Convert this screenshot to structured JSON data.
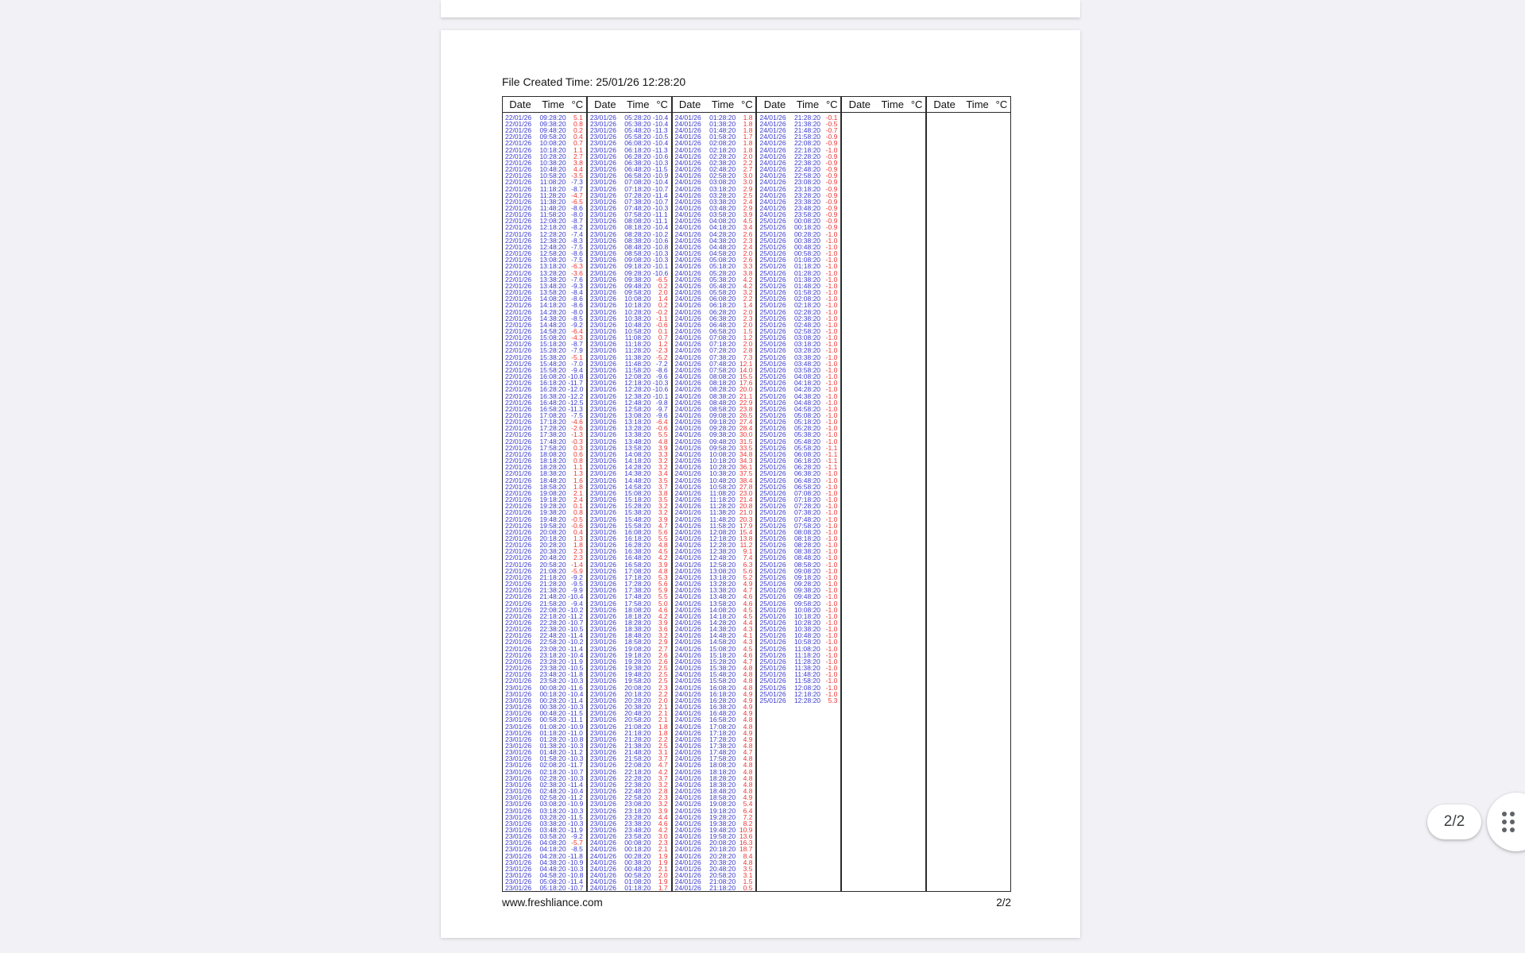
{
  "viewer": {
    "floating_page_indicator": "2/2",
    "colors": {
      "background": "#f1f1f6",
      "page": "#ffffff",
      "dot_icon": "#5f6368"
    }
  },
  "document": {
    "file_created_line": "File Created Time: 25/01/26 12:28:20",
    "footer": {
      "left": "www.freshliance.com",
      "right": "2/2"
    },
    "table": {
      "column_headers": [
        "Date",
        "Time",
        "°C"
      ],
      "group_count": 6,
      "alarm_threshold_c": -7.0,
      "colors": {
        "normal": "#3a3ace",
        "alarm": "#ee3433"
      },
      "groups": [
        [
          "22/01/26 09:28:20 5.1",
          "22/01/26 09:38:20 0.8",
          "22/01/26 09:48:20 0.2",
          "22/01/26 09:58:20 0.4",
          "22/01/26 10:08:20 0.7",
          "22/01/26 10:18:20 1.1",
          "22/01/26 10:28:20 2.7",
          "22/01/26 10:38:20 3.8",
          "22/01/26 10:48:20 4.4",
          "22/01/26 10:58:20 -3.5",
          "22/01/26 11:08:20 -7.3",
          "22/01/26 11:18:20 -8.7",
          "22/01/26 11:28:20 -4.7",
          "22/01/26 11:38:20 -6.5",
          "22/01/26 11:48:20 -8.6",
          "22/01/26 11:58:20 -8.0",
          "22/01/26 12:08:20 -8.7",
          "22/01/26 12:18:20 -8.2",
          "22/01/26 12:28:20 -7.4",
          "22/01/26 12:38:20 -8.3",
          "22/01/26 12:48:20 -7.5",
          "22/01/26 12:58:20 -8.6",
          "22/01/26 13:08:20 -7.5",
          "22/01/26 13:18:20 -6.3",
          "22/01/26 13:28:20 -3.6",
          "22/01/26 13:38:20 -7.6",
          "22/01/26 13:48:20 -9.3",
          "22/01/26 13:58:20 -8.4",
          "22/01/26 14:08:20 -8.6",
          "22/01/26 14:18:20 -8.6",
          "22/01/26 14:28:20 -8.0",
          "22/01/26 14:38:20 -8.5",
          "22/01/26 14:48:20 -9.2",
          "22/01/26 14:58:20 -6.4",
          "22/01/26 15:08:20 -4.3",
          "22/01/26 15:18:20 -8.7",
          "22/01/26 15:28:20 -7.9",
          "22/01/26 15:38:20 -5.1",
          "22/01/26 15:48:20 -7.0",
          "22/01/26 15:58:20 -9.4",
          "22/01/26 16:08:20 -10.8",
          "22/01/26 16:18:20 -11.7",
          "22/01/26 16:28:20 -12.0",
          "22/01/26 16:38:20 -12.2",
          "22/01/26 16:48:20 -12.5",
          "22/01/26 16:58:20 -11.3",
          "22/01/26 17:08:20 -7.5",
          "22/01/26 17:18:20 -4.6",
          "22/01/26 17:28:20 -2.6",
          "22/01/26 17:38:20 -1.3",
          "22/01/26 17:48:20 -0.3",
          "22/01/26 17:58:20 0.3",
          "22/01/26 18:08:20 0.6",
          "22/01/26 18:18:20 0.8",
          "22/01/26 18:28:20 1.1",
          "22/01/26 18:38:20 1.3",
          "22/01/26 18:48:20 1.6",
          "22/01/26 18:58:20 1.8",
          "22/01/26 19:08:20 2.1",
          "22/01/26 19:18:20 2.4",
          "22/01/26 19:28:20 0.1",
          "22/01/26 19:38:20 0.8",
          "22/01/26 19:48:20 -0.5",
          "22/01/26 19:58:20 -0.6",
          "22/01/26 20:08:20 0.4",
          "22/01/26 20:18:20 1.3",
          "22/01/26 20:28:20 1.8",
          "22/01/26 20:38:20 2.3",
          "22/01/26 20:48:20 2.3",
          "22/01/26 20:58:20 -1.4",
          "22/01/26 21:08:20 -5.9",
          "22/01/26 21:18:20 -9.2",
          "22/01/26 21:28:20 -9.5",
          "22/01/26 21:38:20 -9.9",
          "22/01/26 21:48:20 -10.4",
          "22/01/26 21:58:20 -9.4",
          "22/01/26 22:08:20 -10.2",
          "22/01/26 22:18:20 -11.2",
          "22/01/26 22:28:20 -10.7",
          "22/01/26 22:38:20 -10.5",
          "22/01/26 22:48:20 -11.4",
          "22/01/26 22:58:20 -10.2",
          "22/01/26 23:08:20 -11.4",
          "22/01/26 23:18:20 -10.4",
          "22/01/26 23:28:20 -11.9",
          "22/01/26 23:38:20 -10.5",
          "22/01/26 23:48:20 -11.8",
          "22/01/26 23:58:20 -10.3",
          "23/01/26 00:08:20 -11.6",
          "23/01/26 00:18:20 -10.4",
          "23/01/26 00:28:20 -11.4",
          "23/01/26 00:38:20 -10.3",
          "23/01/26 00:48:20 -11.5",
          "23/01/26 00:58:20 -11.1",
          "23/01/26 01:08:20 -10.9",
          "23/01/26 01:18:20 -11.0",
          "23/01/26 01:28:20 -10.8",
          "23/01/26 01:38:20 -10.3",
          "23/01/26 01:48:20 -11.2",
          "23/01/26 01:58:20 -10.3",
          "23/01/26 02:08:20 -11.7",
          "23/01/26 02:18:20 -10.7",
          "23/01/26 02:28:20 -10.3",
          "23/01/26 02:38:20 -11.4",
          "23/01/26 02:48:20 -10.4",
          "23/01/26 02:58:20 -11.2",
          "23/01/26 03:08:20 -10.9",
          "23/01/26 03:18:20 -10.3",
          "23/01/26 03:28:20 -11.5",
          "23/01/26 03:38:20 -10.3",
          "23/01/26 03:48:20 -11.9",
          "23/01/26 03:58:20 -9.2",
          "23/01/26 04:08:20 -5.7",
          "23/01/26 04:18:20 -8.5",
          "23/01/26 04:28:20 -11.8",
          "23/01/26 04:38:20 -10.9",
          "23/01/26 04:48:20 -10.3",
          "23/01/26 04:58:20 -10.8",
          "23/01/26 05:08:20 -11.4",
          "23/01/26 05:18:20 -10.7"
        ],
        [
          "23/01/26 05:28:20 -10.4",
          "23/01/26 05:38:20 -10.4",
          "23/01/26 05:48:20 -11.3",
          "23/01/26 05:58:20 -10.5",
          "23/01/26 06:08:20 -10.4",
          "23/01/26 06:18:20 -11.3",
          "23/01/26 06:28:20 -10.6",
          "23/01/26 06:38:20 -10.3",
          "23/01/26 06:48:20 -11.5",
          "23/01/26 06:58:20 -10.9",
          "23/01/26 07:08:20 -10.4",
          "23/01/26 07:18:20 -10.7",
          "23/01/26 07:28:20 -11.4",
          "23/01/26 07:38:20 -10.7",
          "23/01/26 07:48:20 -10.3",
          "23/01/26 07:58:20 -11.1",
          "23/01/26 08:08:20 -11.1",
          "23/01/26 08:18:20 -10.4",
          "23/01/26 08:28:20 -10.2",
          "23/01/26 08:38:20 -10.6",
          "23/01/26 08:48:20 -10.8",
          "23/01/26 08:58:20 -10.3",
          "23/01/26 09:08:20 -10.3",
          "23/01/26 09:18:20 -10.1",
          "23/01/26 09:28:20 -10.6",
          "23/01/26 09:38:20 -6.5",
          "23/01/26 09:48:20 0.2",
          "23/01/26 09:58:20 2.0",
          "23/01/26 10:08:20 1.4",
          "23/01/26 10:18:20 0.2",
          "23/01/26 10:28:20 -0.2",
          "23/01/26 10:38:20 -1.1",
          "23/01/26 10:48:20 -0.6",
          "23/01/26 10:58:20 0.1",
          "23/01/26 11:08:20 0.7",
          "23/01/26 11:18:20 1.2",
          "23/01/26 11:28:20 -2.3",
          "23/01/26 11:38:20 -5.2",
          "23/01/26 11:48:20 -7.2",
          "23/01/26 11:58:20 -8.6",
          "23/01/26 12:08:20 -9.6",
          "23/01/26 12:18:20 -10.3",
          "23/01/26 12:28:20 -10.6",
          "23/01/26 12:38:20 -10.1",
          "23/01/26 12:48:20 -9.8",
          "23/01/26 12:58:20 -9.7",
          "23/01/26 13:08:20 -9.6",
          "23/01/26 13:18:20 -6.4",
          "23/01/26 13:28:20 -0.6",
          "23/01/26 13:38:20 5.5",
          "23/01/26 13:48:20 4.8",
          "23/01/26 13:58:20 3.9",
          "23/01/26 14:08:20 3.3",
          "23/01/26 14:18:20 3.2",
          "23/01/26 14:28:20 3.2",
          "23/01/26 14:38:20 3.4",
          "23/01/26 14:48:20 3.5",
          "23/01/26 14:58:20 3.7",
          "23/01/26 15:08:20 3.8",
          "23/01/26 15:18:20 3.5",
          "23/01/26 15:28:20 3.2",
          "23/01/26 15:38:20 3.2",
          "23/01/26 15:48:20 3.9",
          "23/01/26 15:58:20 4.7",
          "23/01/26 16:08:20 5.6",
          "23/01/26 16:18:20 5.5",
          "23/01/26 16:28:20 4.8",
          "23/01/26 16:38:20 4.5",
          "23/01/26 16:48:20 4.2",
          "23/01/26 16:58:20 3.9",
          "23/01/26 17:08:20 4.8",
          "23/01/26 17:18:20 5.3",
          "23/01/26 17:28:20 5.6",
          "23/01/26 17:38:20 5.9",
          "23/01/26 17:48:20 5.5",
          "23/01/26 17:58:20 5.0",
          "23/01/26 18:08:20 4.6",
          "23/01/26 18:18:20 4.2",
          "23/01/26 18:28:20 3.9",
          "23/01/26 18:38:20 3.6",
          "23/01/26 18:48:20 3.2",
          "23/01/26 18:58:20 2.9",
          "23/01/26 19:08:20 2.7",
          "23/01/26 19:18:20 2.6",
          "23/01/26 19:28:20 2.6",
          "23/01/26 19:38:20 2.5",
          "23/01/26 19:48:20 2.5",
          "23/01/26 19:58:20 2.5",
          "23/01/26 20:08:20 2.3",
          "23/01/26 20:18:20 2.2",
          "23/01/26 20:28:20 2.0",
          "23/01/26 20:38:20 2.1",
          "23/01/26 20:48:20 2.1",
          "23/01/26 20:58:20 2.1",
          "23/01/26 21:08:20 1.8",
          "23/01/26 21:18:20 1.8",
          "23/01/26 21:28:20 2.2",
          "23/01/26 21:38:20 2.5",
          "23/01/26 21:48:20 3.1",
          "23/01/26 21:58:20 3.7",
          "23/01/26 22:08:20 4.7",
          "23/01/26 22:18:20 4.2",
          "23/01/26 22:28:20 3.7",
          "23/01/26 22:38:20 3.2",
          "23/01/26 22:48:20 2.8",
          "23/01/26 22:58:20 2.3",
          "23/01/26 23:08:20 3.2",
          "23/01/26 23:18:20 3.9",
          "23/01/26 23:28:20 4.4",
          "23/01/26 23:38:20 4.6",
          "23/01/26 23:48:20 4.2",
          "23/01/26 23:58:20 3.0",
          "24/01/26 00:08:20 2.3",
          "24/01/26 00:18:20 2.1",
          "24/01/26 00:28:20 1.9",
          "24/01/26 00:38:20 1.9",
          "24/01/26 00:48:20 2.1",
          "24/01/26 00:58:20 2.0",
          "24/01/26 01:08:20 1.9",
          "24/01/26 01:18:20 1.7"
        ],
        [
          "24/01/26 01:28:20 1.8",
          "24/01/26 01:38:20 1.8",
          "24/01/26 01:48:20 1.8",
          "24/01/26 01:58:20 1.7",
          "24/01/26 02:08:20 1.8",
          "24/01/26 02:18:20 1.8",
          "24/01/26 02:28:20 2.0",
          "24/01/26 02:38:20 2.2",
          "24/01/26 02:48:20 2.7",
          "24/01/26 02:58:20 3.0",
          "24/01/26 03:08:20 3.0",
          "24/01/26 03:18:20 2.9",
          "24/01/26 03:28:20 2.5",
          "24/01/26 03:38:20 2.4",
          "24/01/26 03:48:20 2.9",
          "24/01/26 03:58:20 3.9",
          "24/01/26 04:08:20 4.5",
          "24/01/26 04:18:20 3.4",
          "24/01/26 04:28:20 2.6",
          "24/01/26 04:38:20 2.3",
          "24/01/26 04:48:20 2.4",
          "24/01/26 04:58:20 2.0",
          "24/01/26 05:08:20 2.6",
          "24/01/26 05:18:20 3.3",
          "24/01/26 05:28:20 3.8",
          "24/01/26 05:38:20 4.2",
          "24/01/26 05:48:20 4.2",
          "24/01/26 05:58:20 3.2",
          "24/01/26 06:08:20 2.2",
          "24/01/26 06:18:20 1.4",
          "24/01/26 06:28:20 2.0",
          "24/01/26 06:38:20 2.3",
          "24/01/26 06:48:20 2.0",
          "24/01/26 06:58:20 1.5",
          "24/01/26 07:08:20 1.2",
          "24/01/26 07:18:20 2.0",
          "24/01/26 07:28:20 2.8",
          "24/01/26 07:38:20 7.3",
          "24/01/26 07:48:20 12.1",
          "24/01/26 07:58:20 14.0",
          "24/01/26 08:08:20 15.5",
          "24/01/26 08:18:20 17.6",
          "24/01/26 08:28:20 20.0",
          "24/01/26 08:38:20 21.1",
          "24/01/26 08:48:20 22.9",
          "24/01/26 08:58:20 23.8",
          "24/01/26 09:08:20 26.5",
          "24/01/26 09:18:20 27.4",
          "24/01/26 09:28:20 28.4",
          "24/01/26 09:38:20 30.0",
          "24/01/26 09:48:20 31.5",
          "24/01/26 09:58:20 33.5",
          "24/01/26 10:08:20 34.8",
          "24/01/26 10:18:20 34.3",
          "24/01/26 10:28:20 36.1",
          "24/01/26 10:38:20 37.5",
          "24/01/26 10:48:20 38.4",
          "24/01/26 10:58:20 27.8",
          "24/01/26 11:08:20 23.0",
          "24/01/26 11:18:20 21.4",
          "24/01/26 11:28:20 20.8",
          "24/01/26 11:38:20 21.0",
          "24/01/26 11:48:20 20.3",
          "24/01/26 11:58:20 17.9",
          "24/01/26 12:08:20 15.4",
          "24/01/26 12:18:20 13.8",
          "24/01/26 12:28:20 11.2",
          "24/01/26 12:38:20 9.1",
          "24/01/26 12:48:20 7.4",
          "24/01/26 12:58:20 6.3",
          "24/01/26 13:08:20 5.6",
          "24/01/26 13:18:20 5.2",
          "24/01/26 13:28:20 4.9",
          "24/01/26 13:38:20 4.7",
          "24/01/26 13:48:20 4.6",
          "24/01/26 13:58:20 4.6",
          "24/01/26 14:08:20 4.5",
          "24/01/26 14:18:20 4.5",
          "24/01/26 14:28:20 4.4",
          "24/01/26 14:38:20 4.3",
          "24/01/26 14:48:20 4.1",
          "24/01/26 14:58:20 4.3",
          "24/01/26 15:08:20 4.5",
          "24/01/26 15:18:20 4.6",
          "24/01/26 15:28:20 4.7",
          "24/01/26 15:38:20 4.8",
          "24/01/26 15:48:20 4.8",
          "24/01/26 15:58:20 4.8",
          "24/01/26 16:08:20 4.8",
          "24/01/26 16:18:20 4.9",
          "24/01/26 16:28:20 4.9",
          "24/01/26 16:38:20 4.9",
          "24/01/26 16:48:20 4.9",
          "24/01/26 16:58:20 4.8",
          "24/01/26 17:08:20 4.8",
          "24/01/26 17:18:20 4.9",
          "24/01/26 17:28:20 4.9",
          "24/01/26 17:38:20 4.8",
          "24/01/26 17:48:20 4.7",
          "24/01/26 17:58:20 4.8",
          "24/01/26 18:08:20 4.8",
          "24/01/26 18:18:20 4.8",
          "24/01/26 18:28:20 4.8",
          "24/01/26 18:38:20 4.8",
          "24/01/26 18:48:20 4.8",
          "24/01/26 18:58:20 4.9",
          "24/01/26 19:08:20 5.4",
          "24/01/26 19:18:20 6.4",
          "24/01/26 19:28:20 7.2",
          "24/01/26 19:38:20 8.2",
          "24/01/26 19:48:20 10.9",
          "24/01/26 19:58:20 13.6",
          "24/01/26 20:08:20 16.3",
          "24/01/26 20:18:20 18.7",
          "24/01/26 20:28:20 8.4",
          "24/01/26 20:38:20 4.8",
          "24/01/26 20:48:20 3.5",
          "24/01/26 20:58:20 3.1",
          "24/01/26 21:08:20 1.5",
          "24/01/26 21:18:20 0.5"
        ],
        [
          "24/01/26 21:28:20 -0.1",
          "24/01/26 21:38:20 -0.5",
          "24/01/26 21:48:20 -0.7",
          "24/01/26 21:58:20 -0.9",
          "24/01/26 22:08:20 -0.9",
          "24/01/26 22:18:20 -1.0",
          "24/01/26 22:28:20 -0.9",
          "24/01/26 22:38:20 -0.9",
          "24/01/26 22:48:20 -0.9",
          "24/01/26 22:58:20 -0.9",
          "24/01/26 23:08:20 -0.9",
          "24/01/26 23:18:20 -0.9",
          "24/01/26 23:28:20 -0.9",
          "24/01/26 23:38:20 -0.9",
          "24/01/26 23:48:20 -0.9",
          "24/01/26 23:58:20 -0.9",
          "25/01/26 00:08:20 -0.9",
          "25/01/26 00:18:20 -0.9",
          "25/01/26 00:28:20 -1.0",
          "25/01/26 00:38:20 -1.0",
          "25/01/26 00:48:20 -1.0",
          "25/01/26 00:58:20 -1.0",
          "25/01/26 01:08:20 -1.0",
          "25/01/26 01:18:20 -1.0",
          "25/01/26 01:28:20 -1.0",
          "25/01/26 01:38:20 -1.0",
          "25/01/26 01:48:20 -1.0",
          "25/01/26 01:58:20 -1.0",
          "25/01/26 02:08:20 -1.0",
          "25/01/26 02:18:20 -1.0",
          "25/01/26 02:28:20 -1.0",
          "25/01/26 02:38:20 -1.0",
          "25/01/26 02:48:20 -1.0",
          "25/01/26 02:58:20 -1.0",
          "25/01/26 03:08:20 -1.0",
          "25/01/26 03:18:20 -1.0",
          "25/01/26 03:28:20 -1.0",
          "25/01/26 03:38:20 -1.0",
          "25/01/26 03:48:20 -1.0",
          "25/01/26 03:58:20 -1.0",
          "25/01/26 04:08:20 -1.0",
          "25/01/26 04:18:20 -1.0",
          "25/01/26 04:28:20 -1.0",
          "25/01/26 04:38:20 -1.0",
          "25/01/26 04:48:20 -1.0",
          "25/01/26 04:58:20 -1.0",
          "25/01/26 05:08:20 -1.0",
          "25/01/26 05:18:20 -1.0",
          "25/01/26 05:28:20 -1.0",
          "25/01/26 05:38:20 -1.0",
          "25/01/26 05:48:20 -1.0",
          "25/01/26 05:58:20 -1.1",
          "25/01/26 06:08:20 -1.1",
          "25/01/26 06:18:20 -1.1",
          "25/01/26 06:28:20 -1.1",
          "25/01/26 06:38:20 -1.0",
          "25/01/26 06:48:20 -1.0",
          "25/01/26 06:58:20 -1.0",
          "25/01/26 07:08:20 -1.0",
          "25/01/26 07:18:20 -1.0",
          "25/01/26 07:28:20 -1.0",
          "25/01/26 07:38:20 -1.0",
          "25/01/26 07:48:20 -1.0",
          "25/01/26 07:58:20 -1.0",
          "25/01/26 08:08:20 -1.0",
          "25/01/26 08:18:20 -1.0",
          "25/01/26 08:28:20 -1.0",
          "25/01/26 08:38:20 -1.0",
          "25/01/26 08:48:20 -1.0",
          "25/01/26 08:58:20 -1.0",
          "25/01/26 09:08:20 -1.0",
          "25/01/26 09:18:20 -1.0",
          "25/01/26 09:28:20 -1.0",
          "25/01/26 09:38:20 -1.0",
          "25/01/26 09:48:20 -1.0",
          "25/01/26 09:58:20 -1.0",
          "25/01/26 10:08:20 -1.0",
          "25/01/26 10:18:20 -1.0",
          "25/01/26 10:28:20 -1.0",
          "25/01/26 10:38:20 -1.0",
          "25/01/26 10:48:20 -1.0",
          "25/01/26 10:58:20 -1.0",
          "25/01/26 11:08:20 -1.0",
          "25/01/26 11:18:20 -1.0",
          "25/01/26 11:28:20 -1.0",
          "25/01/26 11:38:20 -1.0",
          "25/01/26 11:48:20 -1.0",
          "25/01/26 11:58:20 -1.0",
          "25/01/26 12:08:20 -1.0",
          "25/01/26 12:18:20 -1.0",
          "25/01/26 12:28:20 5.3"
        ],
        [],
        []
      ]
    }
  }
}
